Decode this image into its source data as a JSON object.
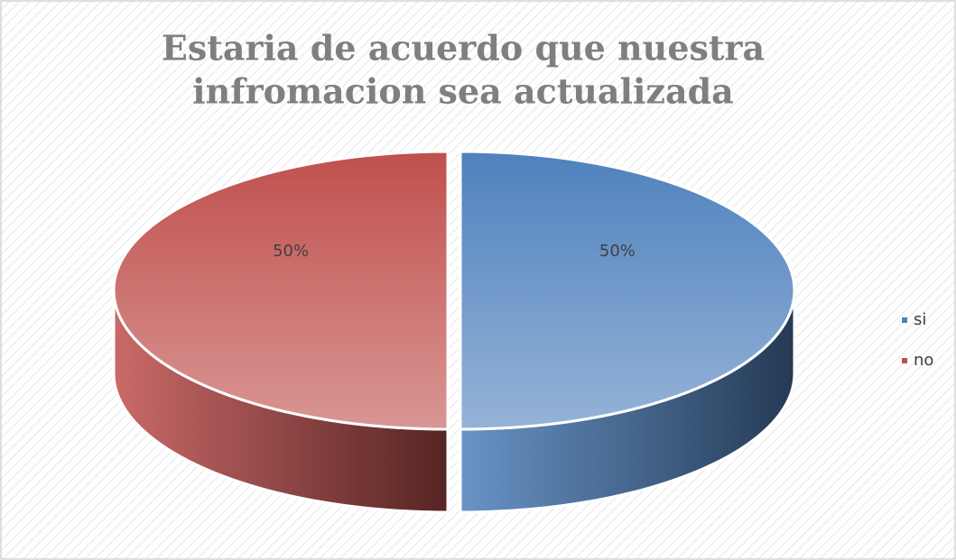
{
  "chart_data": {
    "type": "pie",
    "title": "Estaria de acuerdo que nuestra infromacion sea actualizada",
    "title_lines": [
      "Estaria de acuerdo que nuestra",
      "infromacion sea actualizada"
    ],
    "categories": [
      "si",
      "no"
    ],
    "values": [
      50,
      50
    ],
    "value_labels": [
      "50%",
      "50%"
    ],
    "colors": [
      "#4f81bd",
      "#c0504d"
    ],
    "legend": "right",
    "three_d": true
  }
}
